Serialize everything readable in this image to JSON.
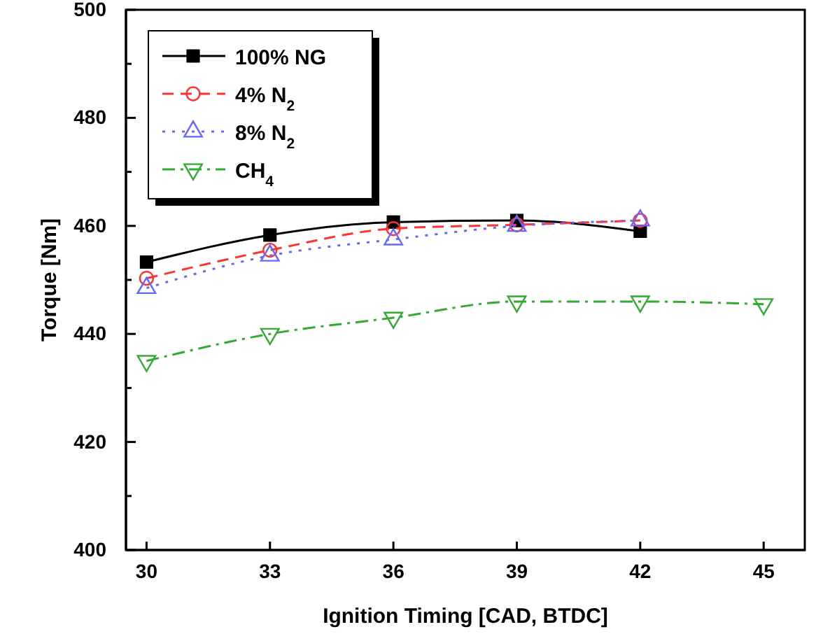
{
  "chart_data": {
    "type": "line",
    "xlabel": "Ignition Timing [CAD, BTDC]",
    "ylabel": "Torque [Nm]",
    "x": [
      30,
      33,
      36,
      39,
      42,
      45
    ],
    "series": [
      {
        "name": "100% NG",
        "color": "#000000",
        "marker": "square",
        "line_style": "solid",
        "values": [
          453.3,
          458.3,
          460.7,
          461.0,
          459.0,
          null
        ]
      },
      {
        "name": "4% N$_{2}$",
        "color": "#ff3333",
        "marker": "circle",
        "line_style": "dashed",
        "values": [
          450.3,
          455.5,
          459.5,
          460.2,
          461.0,
          null
        ]
      },
      {
        "name": "8% N$_{2}$",
        "color": "#6666ff",
        "marker": "triangle",
        "line_style": "dotted",
        "values": [
          448.5,
          454.5,
          457.5,
          460.0,
          461.0,
          null
        ]
      },
      {
        "name": "CH$_{4}$",
        "color": "#33aa33",
        "marker": "triangle-down",
        "line_style": "dashdot",
        "values": [
          435.0,
          440.0,
          443.0,
          446.0,
          446.0,
          445.5
        ]
      }
    ],
    "xlim": [
      29.5,
      46
    ],
    "xticks": [
      30,
      33,
      36,
      39,
      42,
      45
    ],
    "ylim": [
      400,
      500
    ],
    "yticks": [
      400,
      {
        "value": 410,
        "label": null
      },
      420,
      {
        "value": 430,
        "label": null
      },
      440,
      {
        "value": 450,
        "label": null
      },
      460,
      {
        "value": 470,
        "label": null
      },
      480,
      {
        "value": 490,
        "label": null
      },
      500
    ],
    "legend": "top left",
    "grid": false
  }
}
